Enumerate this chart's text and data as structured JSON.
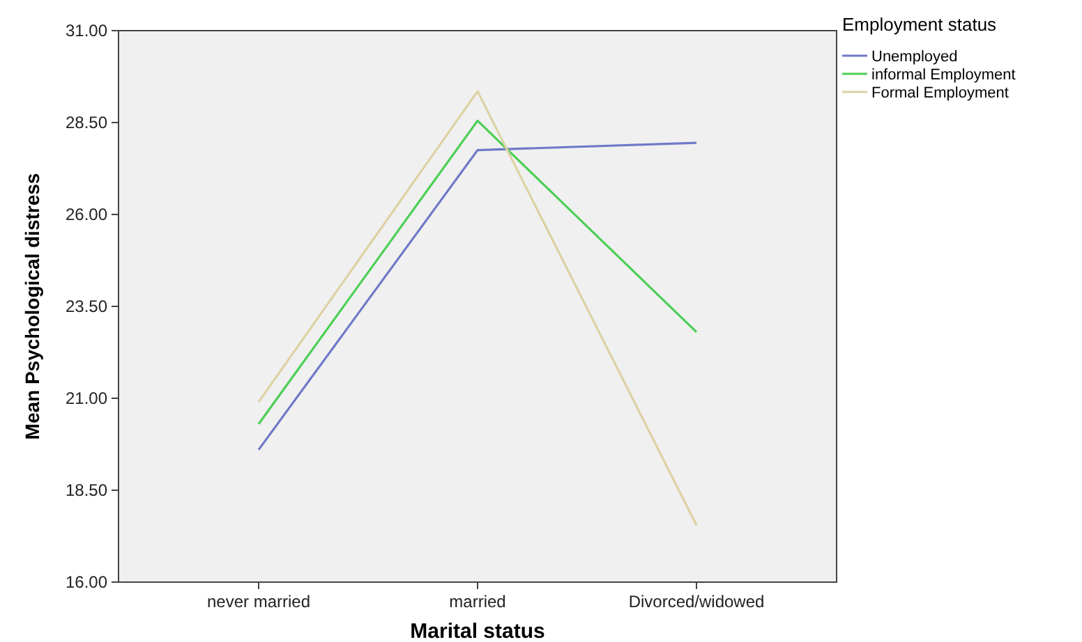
{
  "chart_data": {
    "type": "line",
    "xlabel": "Marital status",
    "ylabel": "Mean Psychological distress",
    "legend_title": "Employment status",
    "legend": "top right",
    "categories": [
      "never married",
      "married",
      "Divorced/widowed"
    ],
    "ylim": [
      16,
      31
    ],
    "yticks": [
      {
        "value": 16,
        "label": "16.00"
      },
      {
        "value": 18.5,
        "label": "18.50"
      },
      {
        "value": 21,
        "label": "21.00"
      },
      {
        "value": 23.5,
        "label": "23.50"
      },
      {
        "value": 26,
        "label": "26.00"
      },
      {
        "value": 28.5,
        "label": "28.50"
      },
      {
        "value": 31,
        "label": "31.00"
      }
    ],
    "grid": false,
    "marker": "none",
    "line_style": "solid",
    "series": [
      {
        "name": "Unemployed",
        "color": "#6f78c8",
        "values": [
          19.6,
          27.75,
          27.95
        ]
      },
      {
        "name": "informal Employment",
        "color": "#4ccf55",
        "values": [
          20.3,
          28.55,
          22.8
        ]
      },
      {
        "name": "Formal Employment",
        "color": "#ddd2a4",
        "values": [
          20.9,
          29.35,
          17.55
        ]
      }
    ]
  }
}
